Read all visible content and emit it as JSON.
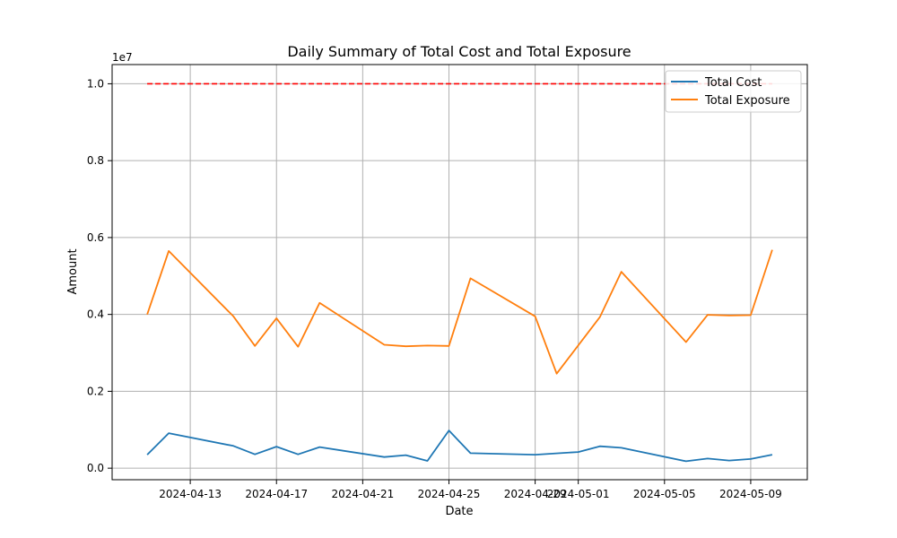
{
  "chart_data": {
    "type": "line",
    "title": "Daily Summary of Total Cost and Total Exposure",
    "xlabel": "Date",
    "ylabel": "Amount",
    "y_scale_label": "1e7",
    "y_scale": 10000000,
    "ylim": [
      -0.03,
      1.05
    ],
    "xlim": [
      "2024-04-09T09:00",
      "2024-05-11T15:00"
    ],
    "grid": true,
    "legend_position": "top-right",
    "x_ticks": [
      "2024-04-13",
      "2024-04-17",
      "2024-04-21",
      "2024-04-25",
      "2024-04-29",
      "2024-05-01",
      "2024-05-05",
      "2024-05-09"
    ],
    "y_ticks": [
      0.0,
      0.2,
      0.4,
      0.6,
      0.8,
      1.0
    ],
    "y_tick_labels": [
      "0.0",
      "0.2",
      "0.4",
      "0.6",
      "0.8",
      "1.0"
    ],
    "reference_line": {
      "value": 1.0,
      "x_start": "2024-04-11",
      "x_end": "2024-05-10",
      "color": "#ff0000",
      "style": "dashed"
    },
    "series": [
      {
        "name": "Total Cost",
        "color": "#1f77b4",
        "points": [
          [
            "2024-04-11",
            0.035
          ],
          [
            "2024-04-12",
            0.091
          ],
          [
            "2024-04-15",
            0.058
          ],
          [
            "2024-04-16",
            0.036
          ],
          [
            "2024-04-17",
            0.056
          ],
          [
            "2024-04-18",
            0.036
          ],
          [
            "2024-04-19",
            0.055
          ],
          [
            "2024-04-22",
            0.029
          ],
          [
            "2024-04-23",
            0.034
          ],
          [
            "2024-04-24",
            0.019
          ],
          [
            "2024-04-25",
            0.098
          ],
          [
            "2024-04-26",
            0.039
          ],
          [
            "2024-04-29",
            0.035
          ],
          [
            "2024-05-01",
            0.042
          ],
          [
            "2024-05-02",
            0.057
          ],
          [
            "2024-05-03",
            0.053
          ],
          [
            "2024-05-06",
            0.018
          ],
          [
            "2024-05-07",
            0.025
          ],
          [
            "2024-05-08",
            0.02
          ],
          [
            "2024-05-09",
            0.024
          ],
          [
            "2024-05-10",
            0.035
          ]
        ]
      },
      {
        "name": "Total Exposure",
        "color": "#ff7f0e",
        "points": [
          [
            "2024-04-11",
            0.4
          ],
          [
            "2024-04-12",
            0.565
          ],
          [
            "2024-04-15",
            0.395
          ],
          [
            "2024-04-16",
            0.318
          ],
          [
            "2024-04-17",
            0.39
          ],
          [
            "2024-04-18",
            0.316
          ],
          [
            "2024-04-19",
            0.43
          ],
          [
            "2024-04-22",
            0.321
          ],
          [
            "2024-04-23",
            0.317
          ],
          [
            "2024-04-24",
            0.319
          ],
          [
            "2024-04-25",
            0.318
          ],
          [
            "2024-04-26",
            0.494
          ],
          [
            "2024-04-29",
            0.395
          ],
          [
            "2024-04-30",
            0.246
          ],
          [
            "2024-05-02",
            0.393
          ],
          [
            "2024-05-03",
            0.511
          ],
          [
            "2024-05-06",
            0.328
          ],
          [
            "2024-05-07",
            0.399
          ],
          [
            "2024-05-08",
            0.397
          ],
          [
            "2024-05-09",
            0.398
          ],
          [
            "2024-05-10",
            0.568
          ]
        ]
      }
    ]
  }
}
